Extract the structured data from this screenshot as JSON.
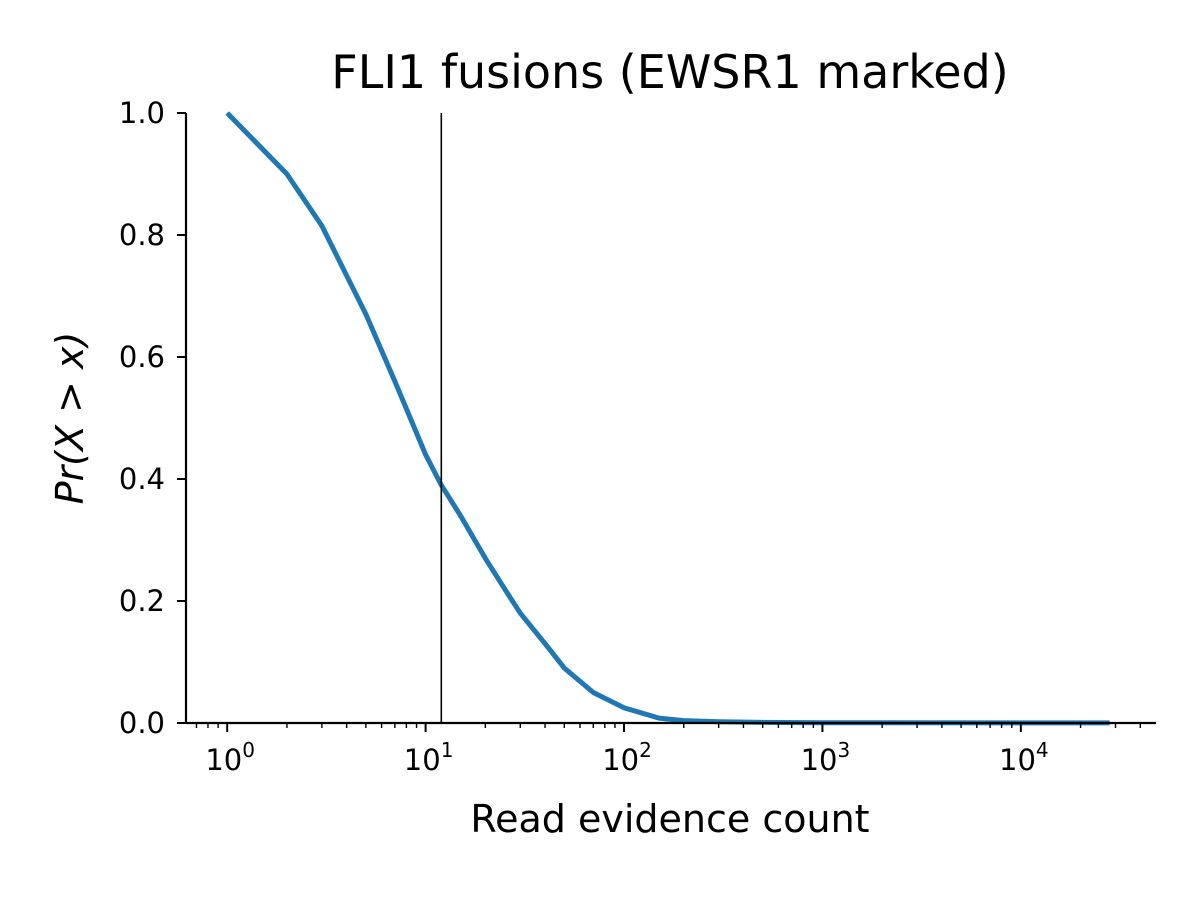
{
  "chart_data": {
    "type": "line",
    "title": "FLI1 fusions (EWSR1 marked)",
    "xlabel": "Read evidence count",
    "ylabel": "Pr(X > x)",
    "xscale": "log",
    "xlim": [
      0.62,
      48000
    ],
    "ylim": [
      0,
      1
    ],
    "x_ticks": [
      {
        "base": "10",
        "exp": "0",
        "value": 1
      },
      {
        "base": "10",
        "exp": "1",
        "value": 10
      },
      {
        "base": "10",
        "exp": "2",
        "value": 100
      },
      {
        "base": "10",
        "exp": "3",
        "value": 1000
      },
      {
        "base": "10",
        "exp": "4",
        "value": 10000
      }
    ],
    "y_ticks": [
      "0.0",
      "0.2",
      "0.4",
      "0.6",
      "0.8",
      "1.0"
    ],
    "series": [
      {
        "color": "#1f77b4",
        "x": [
          1,
          2,
          3,
          5,
          7,
          10,
          12,
          15,
          20,
          25,
          30,
          40,
          50,
          70,
          100,
          150,
          200,
          300,
          500,
          1000,
          10000,
          28000
        ],
        "y": [
          1.0,
          0.9,
          0.815,
          0.67,
          0.56,
          0.44,
          0.39,
          0.34,
          0.27,
          0.22,
          0.18,
          0.13,
          0.09,
          0.05,
          0.025,
          0.008,
          0.004,
          0.002,
          0.001,
          0.0005,
          0.0002,
          0.0001
        ]
      }
    ],
    "vertical_marker": {
      "x": 12,
      "color": "#000000",
      "label": "EWSR1"
    },
    "grid": false,
    "spines": "left-bottom"
  }
}
